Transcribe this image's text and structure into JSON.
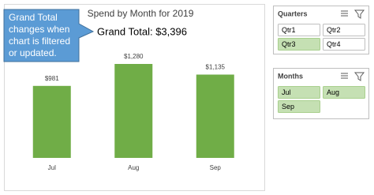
{
  "chart_data": {
    "type": "bar",
    "title": "Spend by Month for 2019",
    "subtitle": "Grand Total: $3,396",
    "categories": [
      "Jul",
      "Aug",
      "Sep"
    ],
    "values": [
      981,
      1280,
      1135
    ],
    "value_labels": [
      "$981",
      "$1,280",
      "$1,135"
    ],
    "color": "#70ad47"
  },
  "callout": {
    "lines": [
      "Grand Total",
      "changes when",
      "chart is filtered",
      "or updated."
    ]
  },
  "slicers": [
    {
      "title": "Quarters",
      "items": [
        {
          "label": "Qtr1",
          "selected": false
        },
        {
          "label": "Qtr2",
          "selected": false
        },
        {
          "label": "Qtr3",
          "selected": true
        },
        {
          "label": "Qtr4",
          "selected": false
        }
      ]
    },
    {
      "title": "Months",
      "items": [
        {
          "label": "Jul",
          "selected": true
        },
        {
          "label": "Aug",
          "selected": true
        },
        {
          "label": "Sep",
          "selected": true
        }
      ]
    }
  ]
}
